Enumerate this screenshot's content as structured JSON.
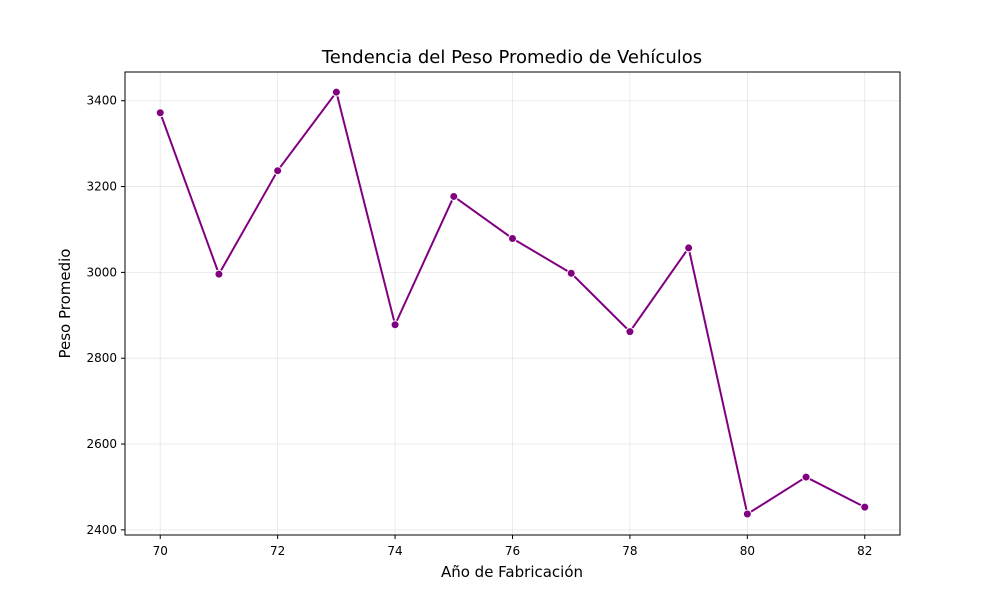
{
  "chart_data": {
    "type": "line",
    "title": "Tendencia del Peso Promedio de Vehículos",
    "xlabel": "Año de Fabricación",
    "ylabel": "Peso Promedio",
    "x": [
      70,
      71,
      72,
      73,
      74,
      75,
      76,
      77,
      78,
      79,
      80,
      81,
      82
    ],
    "series": [
      {
        "values": [
          3372,
          2996,
          3237,
          3420,
          2878,
          3177,
          3079,
          2998,
          2862,
          3057,
          2437,
          2523,
          2453
        ],
        "color": "#800080",
        "marker": "circle"
      }
    ],
    "xlim": [
      69.4,
      82.6
    ],
    "ylim": [
      2388,
      3467
    ],
    "xticks": [
      70,
      72,
      74,
      76,
      78,
      80,
      82
    ],
    "yticks": [
      2400,
      2600,
      2800,
      3000,
      3200,
      3400
    ],
    "grid": true
  }
}
